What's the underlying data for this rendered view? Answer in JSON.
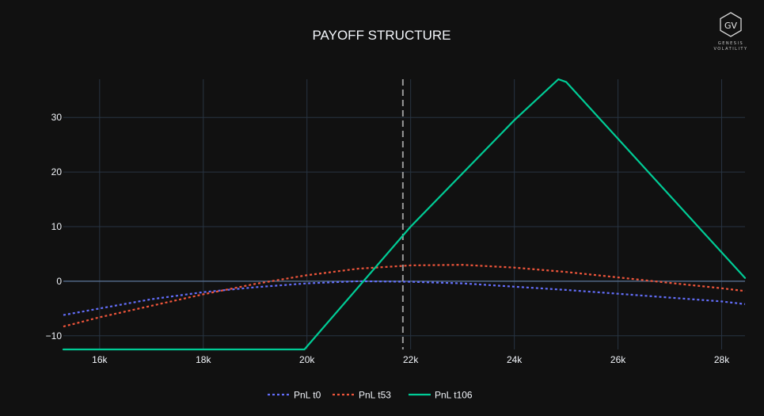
{
  "logo": {
    "monogram": "GV",
    "line1": "GENESIS",
    "line2": "VOLATILITY"
  },
  "colors": {
    "background": "#111111",
    "grid": "#283442",
    "zeroline": "#506784",
    "text": "#f2f5fa",
    "pnl_t0": "#636efa",
    "pnl_t53": "#ef553b",
    "pnl_t106": "#00cc96",
    "spot_line": "#9a9a9a"
  },
  "chart_data": {
    "type": "line",
    "title": "PAYOFF STRUCTURE",
    "xlabel": "",
    "ylabel": "",
    "xlim": [
      15300,
      28450
    ],
    "ylim": [
      -12.5,
      37
    ],
    "x_ticks": [
      16000,
      18000,
      20000,
      22000,
      24000,
      26000,
      28000
    ],
    "x_tick_labels": [
      "16k",
      "18k",
      "20k",
      "22k",
      "24k",
      "26k",
      "28k"
    ],
    "y_ticks": [
      -10,
      0,
      10,
      20,
      30
    ],
    "y_tick_labels": [
      "−10",
      "0",
      "10",
      "20",
      "30"
    ],
    "grid": true,
    "legend_position": "bottom-center",
    "reference_lines": [
      {
        "axis": "x",
        "value": 21850,
        "style": "dashed"
      }
    ],
    "series": [
      {
        "name": "PnL t0",
        "style": "dotted",
        "x": [
          15300,
          16000,
          17000,
          18000,
          19000,
          20000,
          21000,
          22000,
          23000,
          24000,
          25000,
          26000,
          27000,
          28000,
          28450
        ],
        "y": [
          -6.2,
          -5.0,
          -3.3,
          -2.0,
          -1.1,
          -0.4,
          0.0,
          -0.1,
          -0.4,
          -1.0,
          -1.6,
          -2.3,
          -3.0,
          -3.7,
          -4.2
        ]
      },
      {
        "name": "PnL t53",
        "style": "dotted",
        "x": [
          15300,
          16000,
          17000,
          18000,
          19000,
          20000,
          21000,
          22000,
          23000,
          24000,
          25000,
          26000,
          27000,
          28000,
          28450
        ],
        "y": [
          -8.3,
          -6.6,
          -4.5,
          -2.4,
          -0.5,
          1.1,
          2.3,
          2.9,
          3.0,
          2.5,
          1.7,
          0.7,
          -0.3,
          -1.3,
          -1.8
        ]
      },
      {
        "name": "PnL t106",
        "style": "solid",
        "x": [
          15300,
          19950,
          22000,
          24000,
          24850,
          25000,
          28450
        ],
        "y": [
          -12.5,
          -12.5,
          10.0,
          29.5,
          37.0,
          36.5,
          0.6
        ]
      }
    ]
  }
}
